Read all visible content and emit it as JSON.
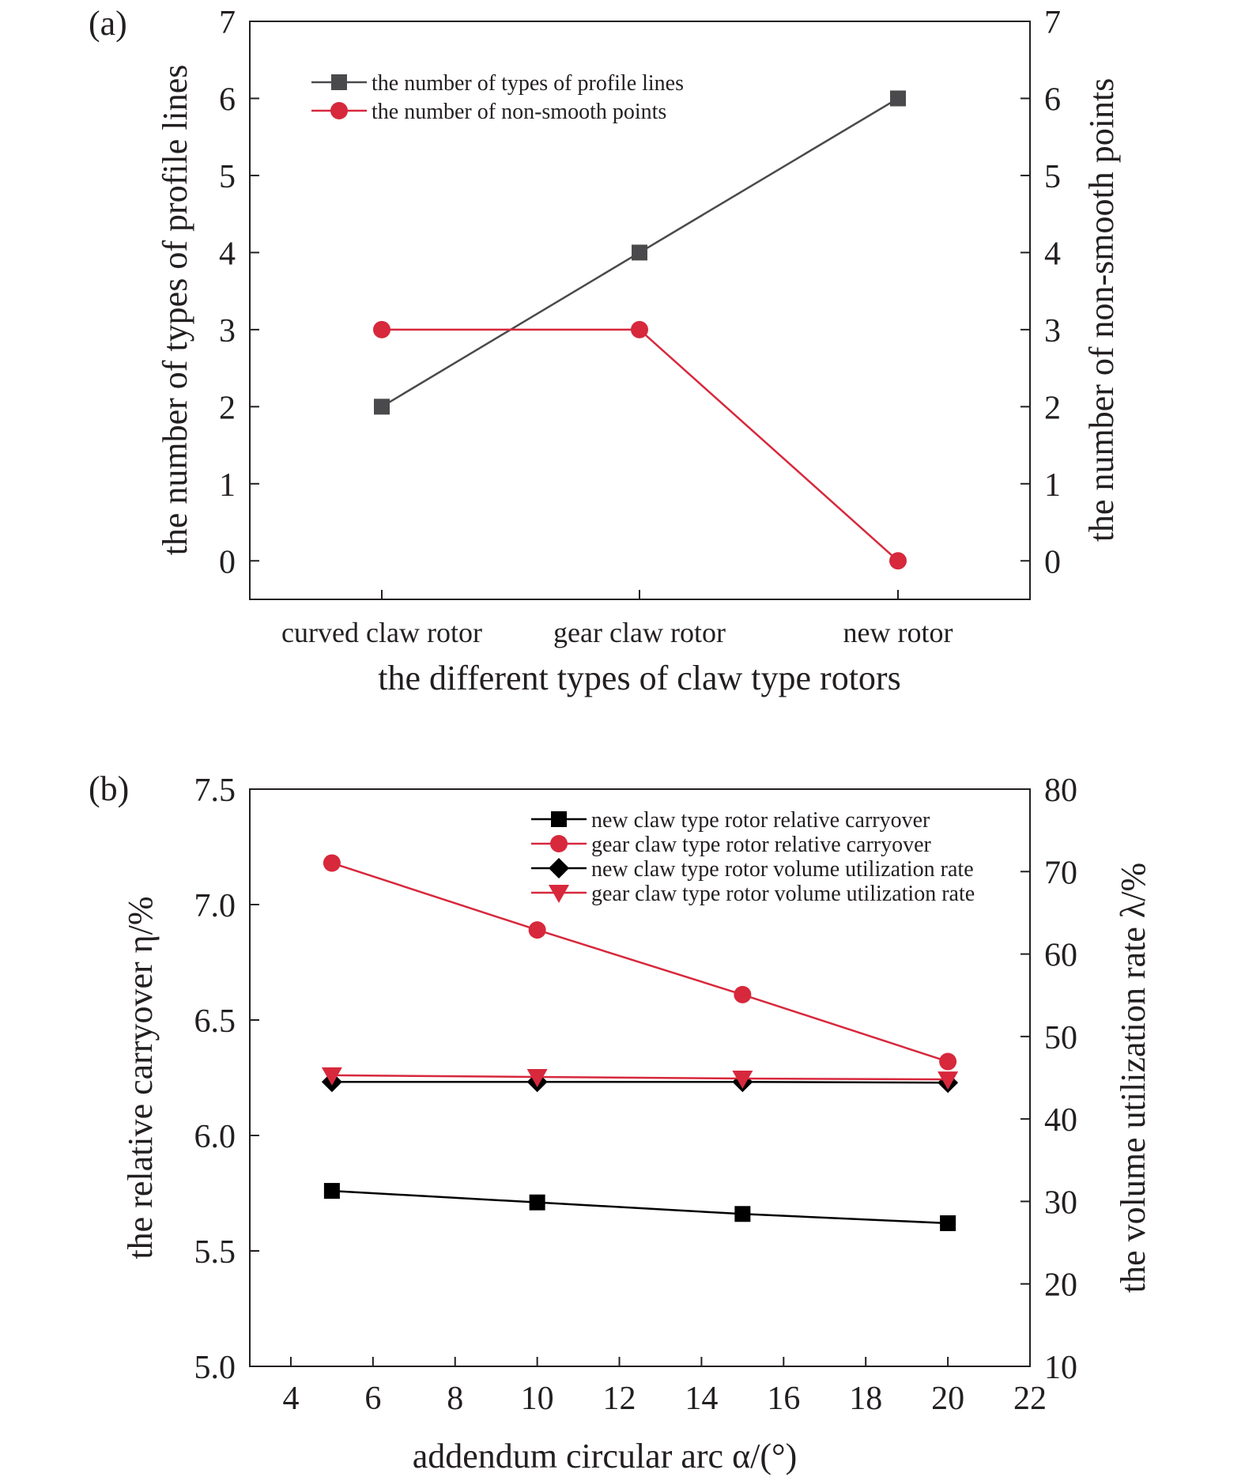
{
  "chart_data": [
    {
      "type": "line",
      "panel_label": "(a)",
      "categories": [
        "curved claw rotor",
        "gear claw rotor",
        "new rotor"
      ],
      "xlabel": "the different types of claw type rotors",
      "ylabel": "the number of types of profile lines",
      "ylabel_right": "the number of non-smooth points",
      "ylim": [
        -0.5,
        7
      ],
      "yticks": [
        0,
        1,
        2,
        3,
        4,
        5,
        6,
        7
      ],
      "grid": false,
      "legend_position": "top-left",
      "series": [
        {
          "name": "the number of types of profile lines",
          "values": [
            2,
            4,
            6
          ],
          "color": "#4a4a4c",
          "marker": "square",
          "axis": "left"
        },
        {
          "name": "the number of non-smooth points",
          "values": [
            3,
            3,
            0
          ],
          "color": "#d7283c",
          "marker": "circle",
          "axis": "right"
        }
      ]
    },
    {
      "type": "line",
      "panel_label": "(b)",
      "x": [
        5,
        10,
        15,
        20
      ],
      "xticks": [
        4,
        6,
        8,
        10,
        12,
        14,
        16,
        18,
        20,
        22
      ],
      "xlim": [
        3,
        22
      ],
      "xlabel": "addendum circular arc α/(°)",
      "ylabel": "the relative carryover η/%",
      "ylabel_right": "the volume utilization rate λ/%",
      "ylim": [
        5.0,
        7.5
      ],
      "yticks": [
        5.0,
        5.5,
        6.0,
        6.5,
        7.0,
        7.5
      ],
      "ylim_right": [
        10,
        80
      ],
      "yticks_right": [
        10,
        20,
        30,
        40,
        50,
        60,
        70,
        80
      ],
      "grid": false,
      "legend_position": "top-right",
      "series": [
        {
          "name": "new claw type rotor relative carryover",
          "values": [
            5.76,
            5.71,
            5.66,
            5.62
          ],
          "color": "#000000",
          "marker": "square",
          "axis": "left"
        },
        {
          "name": "gear claw type rotor relative carryover",
          "values": [
            7.18,
            6.89,
            6.61,
            6.32
          ],
          "color": "#d7283c",
          "marker": "circle",
          "axis": "left"
        },
        {
          "name": "new claw type rotor volume utilization rate",
          "values": [
            44.5,
            44.5,
            44.5,
            44.4
          ],
          "color": "#000000",
          "marker": "diamond",
          "axis": "right"
        },
        {
          "name": "gear claw type rotor volume utilization rate",
          "values": [
            45.3,
            45.1,
            44.9,
            44.8
          ],
          "color": "#d7283c",
          "marker": "triangle-down",
          "axis": "right"
        }
      ]
    }
  ]
}
